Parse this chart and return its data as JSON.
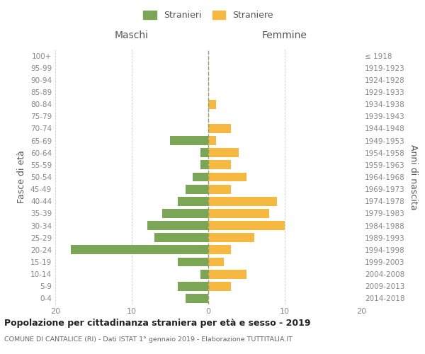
{
  "age_groups": [
    "0-4",
    "5-9",
    "10-14",
    "15-19",
    "20-24",
    "25-29",
    "30-34",
    "35-39",
    "40-44",
    "45-49",
    "50-54",
    "55-59",
    "60-64",
    "65-69",
    "70-74",
    "75-79",
    "80-84",
    "85-89",
    "90-94",
    "95-99",
    "100+"
  ],
  "birth_years": [
    "2014-2018",
    "2009-2013",
    "2004-2008",
    "1999-2003",
    "1994-1998",
    "1989-1993",
    "1984-1988",
    "1979-1983",
    "1974-1978",
    "1969-1973",
    "1964-1968",
    "1959-1963",
    "1954-1958",
    "1949-1953",
    "1944-1948",
    "1939-1943",
    "1934-1938",
    "1929-1933",
    "1924-1928",
    "1919-1923",
    "≤ 1918"
  ],
  "maschi": [
    3,
    4,
    1,
    4,
    18,
    7,
    8,
    6,
    4,
    3,
    2,
    1,
    1,
    5,
    0,
    0,
    0,
    0,
    0,
    0,
    0
  ],
  "femmine": [
    0,
    3,
    5,
    2,
    3,
    6,
    10,
    8,
    9,
    3,
    5,
    3,
    4,
    1,
    3,
    0,
    1,
    0,
    0,
    0,
    0
  ],
  "maschi_color": "#7aa655",
  "femmine_color": "#f5b942",
  "title": "Popolazione per cittadinanza straniera per età e sesso - 2019",
  "subtitle": "COMUNE DI CANTALICE (RI) - Dati ISTAT 1° gennaio 2019 - Elaborazione TUTTITALIA.IT",
  "xlabel_left": "Maschi",
  "xlabel_right": "Femmine",
  "ylabel_left": "Fasce di età",
  "ylabel_right": "Anni di nascita",
  "legend_stranieri": "Stranieri",
  "legend_straniere": "Straniere",
  "xlim": 20,
  "background_color": "#ffffff",
  "grid_color": "#cccccc"
}
